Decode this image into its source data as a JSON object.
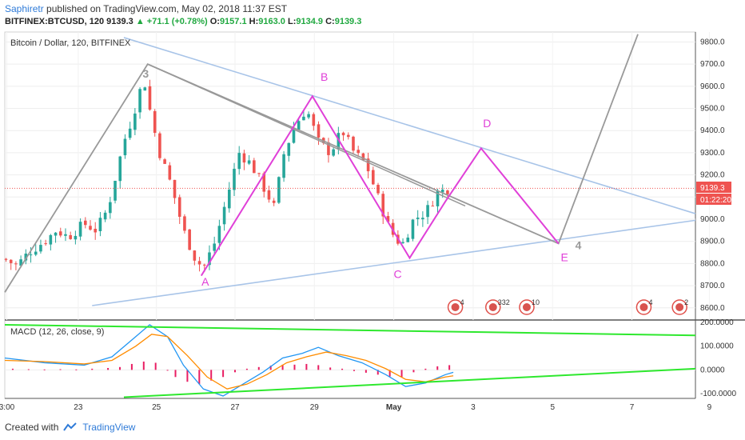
{
  "header": {
    "author": "Saphiretr",
    "published": "published on TradingView.com, May 02, 2018 11:37 EST",
    "symbol": "BITFINEX:BTCUSD, 120",
    "last": "9139.3",
    "change": "▲ +71.1 (+0.78%)",
    "o_label": "O:",
    "o_val": "9157.1",
    "h_label": "H:",
    "h_val": "9163.0",
    "l_label": "L:",
    "l_val": "9134.9",
    "c_label": "C:",
    "c_val": "9139.3"
  },
  "pane_title": "Bitcoin / Dollar, 120, BITFINEX",
  "macd_title": "MACD (12, 26, close, 9)",
  "footer": {
    "created": "Created with",
    "brand": "TradingView"
  },
  "price_badge": "9139.3",
  "time_badge": "01:22:20",
  "colors": {
    "up": "#26a69a",
    "down": "#ef5350",
    "pattern": "#e040d8",
    "trend": "#a8c4e8",
    "wave": "#999999",
    "macd": "#2196f3",
    "signal": "#ff8c00",
    "hist": "#e91e63",
    "green": "#2ee82e"
  },
  "chart_data": [
    {
      "type": "candlestick",
      "title": "Bitcoin / Dollar, 120, BITFINEX",
      "x_ticks": [
        "3:00",
        "23",
        "25",
        "27",
        "29",
        "May",
        "3",
        "5",
        "7",
        "9"
      ],
      "y_ticks": [
        8600,
        8700,
        8800,
        8900,
        9000,
        9100,
        9200,
        9300,
        9400,
        9500,
        9600,
        9700,
        9800
      ],
      "y_tick_labels": [
        "8600.0",
        "8700.0",
        "8800.0",
        "8900.0",
        "9000.0",
        "9100.0",
        "9200.0",
        "9300.0",
        "9400.0",
        "9500.0",
        "9600.0",
        "9700.0",
        "9800.0"
      ],
      "ylim": [
        8545,
        9845
      ],
      "xlim": [
        0,
        17.4
      ],
      "last_price": 9139.3,
      "close_path": [
        [
          0.0,
          8820
        ],
        [
          0.3,
          8790
        ],
        [
          0.6,
          8850
        ],
        [
          1.0,
          8900
        ],
        [
          1.3,
          8950
        ],
        [
          1.6,
          8920
        ],
        [
          2.0,
          8980
        ],
        [
          2.3,
          8950
        ],
        [
          2.6,
          9050
        ],
        [
          2.8,
          9200
        ],
        [
          3.0,
          9350
        ],
        [
          3.2,
          9450
        ],
        [
          3.5,
          9640
        ],
        [
          3.7,
          9450
        ],
        [
          3.9,
          9300
        ],
        [
          4.2,
          9150
        ],
        [
          4.5,
          8950
        ],
        [
          4.8,
          8820
        ],
        [
          5.0,
          8780
        ],
        [
          5.3,
          8900
        ],
        [
          5.6,
          9100
        ],
        [
          5.9,
          9300
        ],
        [
          6.2,
          9250
        ],
        [
          6.5,
          9150
        ],
        [
          6.8,
          9050
        ],
        [
          7.0,
          9280
        ],
        [
          7.3,
          9420
        ],
        [
          7.6,
          9500
        ],
        [
          7.9,
          9350
        ],
        [
          8.2,
          9300
        ],
        [
          8.5,
          9400
        ],
        [
          8.8,
          9300
        ],
        [
          9.1,
          9250
        ],
        [
          9.4,
          9100
        ],
        [
          9.7,
          8950
        ],
        [
          10.0,
          8880
        ],
        [
          10.3,
          9000
        ],
        [
          10.6,
          9030
        ],
        [
          10.9,
          9120
        ],
        [
          11.2,
          9140
        ]
      ],
      "annotations": [
        {
          "label": "3",
          "x": 3.55,
          "y": 9640,
          "color": "wave"
        },
        {
          "label": "A",
          "x": 5.05,
          "y": 8700,
          "color": "pattern"
        },
        {
          "label": "B",
          "x": 8.05,
          "y": 9625,
          "color": "pattern"
        },
        {
          "label": "C",
          "x": 9.9,
          "y": 8735,
          "color": "pattern"
        },
        {
          "label": "D",
          "x": 12.15,
          "y": 9415,
          "color": "pattern"
        },
        {
          "label": "E",
          "x": 14.1,
          "y": 8810,
          "color": "pattern"
        },
        {
          "label": "4",
          "x": 14.45,
          "y": 8865,
          "color": "wave"
        }
      ],
      "pattern_line": [
        [
          4.95,
          8745
        ],
        [
          7.75,
          9555
        ],
        [
          10.2,
          8825
        ],
        [
          11.1,
          9080
        ],
        [
          12.0,
          9320
        ],
        [
          13.95,
          8890
        ]
      ],
      "wave_line": [
        [
          0.0,
          8670
        ],
        [
          3.6,
          9700
        ],
        [
          13.95,
          8890
        ],
        [
          15.95,
          9835
        ]
      ],
      "wave_line2": [
        [
          3.6,
          9700
        ],
        [
          11.6,
          9060
        ]
      ],
      "trend_upper": [
        [
          3.0,
          9820
        ],
        [
          17.4,
          9025
        ]
      ],
      "trend_lower": [
        [
          2.2,
          8610
        ],
        [
          17.4,
          8995
        ]
      ],
      "event_badges": [
        {
          "x": 11.35,
          "text": "4"
        },
        {
          "x": 12.3,
          "text": "332"
        },
        {
          "x": 13.15,
          "text": "10"
        },
        {
          "x": 16.1,
          "text": "4"
        },
        {
          "x": 17.0,
          "text": "2"
        }
      ]
    },
    {
      "type": "line",
      "title": "MACD (12, 26, close, 9)",
      "y_ticks": [
        200,
        100,
        0,
        -100
      ],
      "y_tick_labels": [
        "200.0000",
        "100.0000",
        "0.0000",
        "-100.0000"
      ],
      "ylim": [
        -120,
        210
      ],
      "series": [
        {
          "values": [
            [
              0,
              50
            ],
            [
              1,
              30
            ],
            [
              2,
              20
            ],
            [
              2.7,
              55
            ],
            [
              3.3,
              140
            ],
            [
              3.65,
              190
            ],
            [
              4.1,
              140
            ],
            [
              4.5,
              20
            ],
            [
              5.0,
              -80
            ],
            [
              5.5,
              -110
            ],
            [
              6.0,
              -60
            ],
            [
              6.5,
              -10
            ],
            [
              7.0,
              50
            ],
            [
              7.5,
              70
            ],
            [
              7.9,
              95
            ],
            [
              8.4,
              60
            ],
            [
              9.0,
              30
            ],
            [
              9.6,
              -20
            ],
            [
              10.1,
              -70
            ],
            [
              10.6,
              -55
            ],
            [
              11.1,
              -20
            ],
            [
              11.3,
              -10
            ]
          ]
        },
        {
          "values": [
            [
              0,
              40
            ],
            [
              1,
              35
            ],
            [
              2,
              25
            ],
            [
              2.7,
              40
            ],
            [
              3.3,
              100
            ],
            [
              3.7,
              150
            ],
            [
              4.1,
              140
            ],
            [
              4.6,
              60
            ],
            [
              5.1,
              -30
            ],
            [
              5.6,
              -80
            ],
            [
              6.1,
              -60
            ],
            [
              6.6,
              -20
            ],
            [
              7.1,
              30
            ],
            [
              7.6,
              55
            ],
            [
              8.1,
              75
            ],
            [
              8.6,
              60
            ],
            [
              9.1,
              40
            ],
            [
              9.6,
              5
            ],
            [
              10.1,
              -40
            ],
            [
              10.6,
              -50
            ],
            [
              11.1,
              -30
            ],
            [
              11.3,
              -25
            ]
          ]
        }
      ],
      "histogram": [
        [
          0.2,
          5
        ],
        [
          0.6,
          3
        ],
        [
          1.0,
          2
        ],
        [
          1.4,
          3
        ],
        [
          1.8,
          2
        ],
        [
          2.2,
          5
        ],
        [
          2.6,
          8
        ],
        [
          2.9,
          12
        ],
        [
          3.2,
          25
        ],
        [
          3.5,
          35
        ],
        [
          3.8,
          30
        ],
        [
          4.1,
          0
        ],
        [
          4.3,
          -30
        ],
        [
          4.6,
          -50
        ],
        [
          4.9,
          -60
        ],
        [
          5.2,
          -45
        ],
        [
          5.5,
          -30
        ],
        [
          5.8,
          -10
        ],
        [
          6.1,
          5
        ],
        [
          6.4,
          12
        ],
        [
          6.7,
          18
        ],
        [
          7.0,
          22
        ],
        [
          7.3,
          22
        ],
        [
          7.6,
          25
        ],
        [
          7.9,
          20
        ],
        [
          8.2,
          10
        ],
        [
          8.5,
          5
        ],
        [
          8.8,
          -5
        ],
        [
          9.1,
          -12
        ],
        [
          9.4,
          -20
        ],
        [
          9.7,
          -28
        ],
        [
          10.0,
          -30
        ],
        [
          10.3,
          -10
        ],
        [
          10.6,
          5
        ],
        [
          10.9,
          15
        ],
        [
          11.2,
          20
        ]
      ],
      "trend_upper": [
        [
          0.0,
          190
        ],
        [
          17.4,
          145
        ]
      ],
      "trend_lower": [
        [
          3.0,
          -115
        ],
        [
          17.4,
          5
        ]
      ]
    }
  ]
}
